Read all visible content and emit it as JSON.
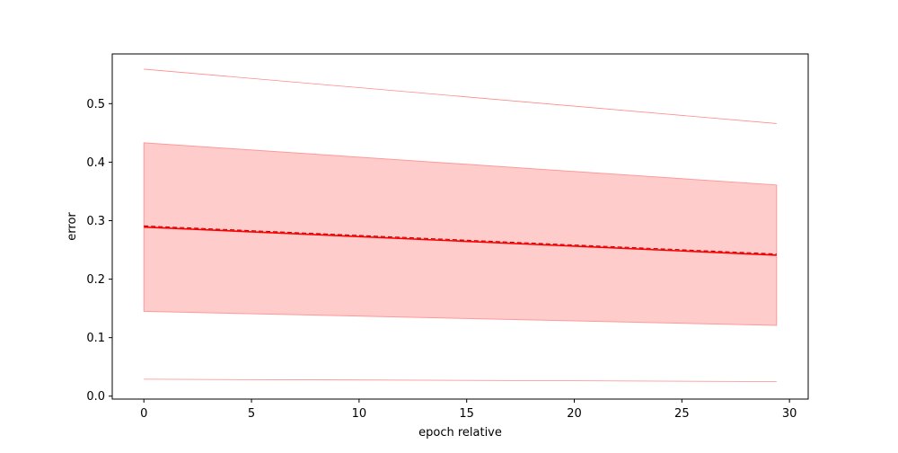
{
  "chart_data": {
    "type": "line",
    "title": "",
    "xlabel": "epoch relative",
    "ylabel": "error",
    "xlim": [
      -1.47,
      30.87
    ],
    "ylim": [
      -0.005,
      0.585
    ],
    "x_ticks": [
      0,
      5,
      10,
      15,
      20,
      25,
      30
    ],
    "y_ticks": [
      0.0,
      0.1,
      0.2,
      0.3,
      0.4,
      0.5
    ],
    "x_tick_labels": [
      "0",
      "5",
      "10",
      "15",
      "20",
      "25",
      "30"
    ],
    "y_tick_labels": [
      "0.0",
      "0.1",
      "0.2",
      "0.3",
      "0.4",
      "0.5"
    ],
    "grid": false,
    "series": [
      {
        "style": "solid",
        "color": "#ff0000",
        "x": [
          0,
          29.4
        ],
        "y": [
          0.289,
          0.241
        ]
      },
      {
        "style": "dashed",
        "color": "#cc0000",
        "x": [
          0,
          29.4
        ],
        "y": [
          0.291,
          0.243
        ]
      },
      {
        "style": "thin-line",
        "color": "#ff8a8a",
        "x": [
          0,
          29.4
        ],
        "y": [
          0.559,
          0.466
        ]
      },
      {
        "style": "thin-line",
        "color": "#ff8a8a",
        "x": [
          0,
          29.4
        ],
        "y": [
          0.029,
          0.025
        ]
      }
    ],
    "bands": [
      {
        "color": "#ff9999",
        "opacity": 0.5,
        "x": [
          0,
          29.4
        ],
        "upper": [
          0.433,
          0.361
        ],
        "lower": [
          0.145,
          0.121
        ]
      }
    ]
  }
}
